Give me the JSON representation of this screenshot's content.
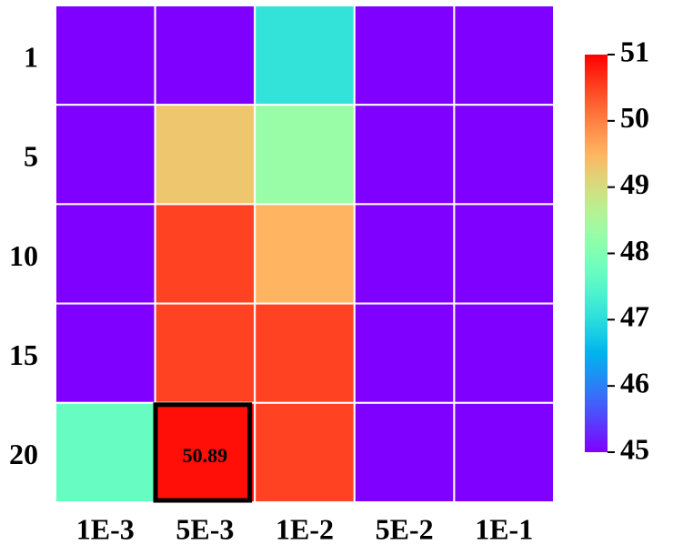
{
  "chart_data": {
    "type": "heatmap",
    "rows": [
      "1",
      "5",
      "10",
      "15",
      "20"
    ],
    "columns": [
      "1E-3",
      "5E-3",
      "1E-2",
      "5E-2",
      "1E-1"
    ],
    "z": [
      [
        45,
        45,
        47.1,
        45,
        45
      ],
      [
        45,
        49.3,
        48.3,
        45,
        45
      ],
      [
        45,
        50.5,
        49.5,
        45,
        45
      ],
      [
        45,
        50.5,
        50.5,
        45,
        45
      ],
      [
        47.7,
        50.89,
        50.5,
        45,
        45
      ]
    ],
    "colormap": "rainbow",
    "clim": [
      45,
      51
    ],
    "cticks": [
      45,
      46,
      47,
      48,
      49,
      50,
      51
    ]
  }
}
